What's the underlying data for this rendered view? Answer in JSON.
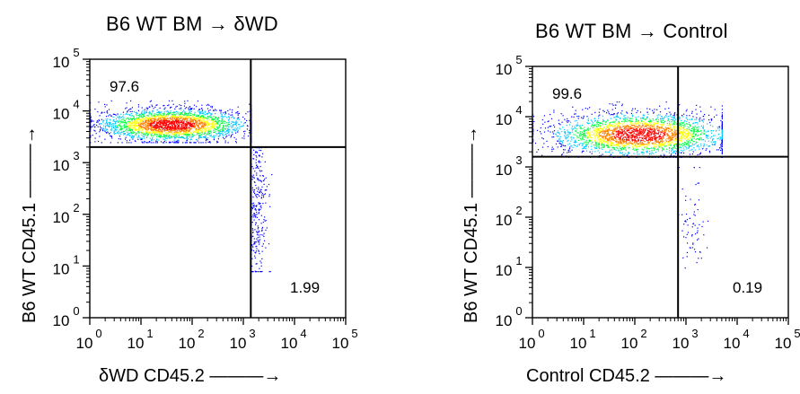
{
  "chart_data": [
    {
      "type": "scatter",
      "title": "B6 WT BM → δWD",
      "xlabel": "δWD CD45.2",
      "ylabel": "B6 WT CD45.1",
      "xscale": "log",
      "yscale": "log",
      "xlim": [
        1,
        100000
      ],
      "ylim": [
        1,
        100000
      ],
      "x_ticks": [
        {
          "base": "10",
          "exp": "0"
        },
        {
          "base": "10",
          "exp": "1"
        },
        {
          "base": "10",
          "exp": "2"
        },
        {
          "base": "10",
          "exp": "3"
        },
        {
          "base": "10",
          "exp": "4"
        },
        {
          "base": "10",
          "exp": "5"
        }
      ],
      "y_ticks": [
        {
          "base": "10",
          "exp": "0"
        },
        {
          "base": "10",
          "exp": "1"
        },
        {
          "base": "10",
          "exp": "2"
        },
        {
          "base": "10",
          "exp": "3"
        },
        {
          "base": "10",
          "exp": "4"
        },
        {
          "base": "10",
          "exp": "5"
        }
      ],
      "gate": {
        "x": 1400,
        "y": 2000
      },
      "quadrant_labels": [
        {
          "position": "top-left",
          "text": "97.6"
        },
        {
          "position": "bottom-right",
          "text": "1.99"
        }
      ],
      "populations": [
        {
          "name": "upper-left",
          "percent": 97.6,
          "x_range": [
            1,
            1400
          ],
          "y_range": [
            2500,
            16000
          ],
          "peak": [
            40,
            5500
          ]
        },
        {
          "name": "lower-right",
          "percent": 1.99,
          "x_range": [
            1400,
            4500
          ],
          "y_range": [
            8,
            2000
          ],
          "peak": [
            1800,
            150
          ]
        }
      ],
      "grid": false,
      "legend": "none"
    },
    {
      "type": "scatter",
      "title": "B6 WT BM → Control",
      "xlabel": "Control CD45.2",
      "ylabel": "B6 WT CD45.1",
      "xscale": "log",
      "yscale": "log",
      "xlim": [
        1,
        100000
      ],
      "ylim": [
        1,
        100000
      ],
      "x_ticks": [
        {
          "base": "10",
          "exp": "0"
        },
        {
          "base": "10",
          "exp": "1"
        },
        {
          "base": "10",
          "exp": "2"
        },
        {
          "base": "10",
          "exp": "3"
        },
        {
          "base": "10",
          "exp": "4"
        },
        {
          "base": "10",
          "exp": "5"
        }
      ],
      "y_ticks": [
        {
          "base": "10",
          "exp": "0"
        },
        {
          "base": "10",
          "exp": "1"
        },
        {
          "base": "10",
          "exp": "2"
        },
        {
          "base": "10",
          "exp": "3"
        },
        {
          "base": "10",
          "exp": "4"
        },
        {
          "base": "10",
          "exp": "5"
        }
      ],
      "gate": {
        "x": 700,
        "y": 1600
      },
      "quadrant_labels": [
        {
          "position": "top-left",
          "text": "99.6"
        },
        {
          "position": "bottom-right",
          "text": "0.19"
        }
      ],
      "populations": [
        {
          "name": "upper-left",
          "percent": 99.6,
          "x_range": [
            1,
            5000
          ],
          "y_range": [
            1600,
            20000
          ],
          "peak": [
            120,
            4500
          ]
        },
        {
          "name": "lower-right",
          "percent": 0.19,
          "x_range": [
            700,
            3000
          ],
          "y_range": [
            10,
            1000
          ],
          "peak": [
            1300,
            100
          ]
        }
      ],
      "grid": false,
      "legend": "none"
    }
  ],
  "colors": {
    "density_scale": [
      "#0000ff",
      "#00c8ff",
      "#00ff40",
      "#ffff00",
      "#ff8000",
      "#ff0000"
    ],
    "axis": "#000000",
    "text": "#000000"
  }
}
